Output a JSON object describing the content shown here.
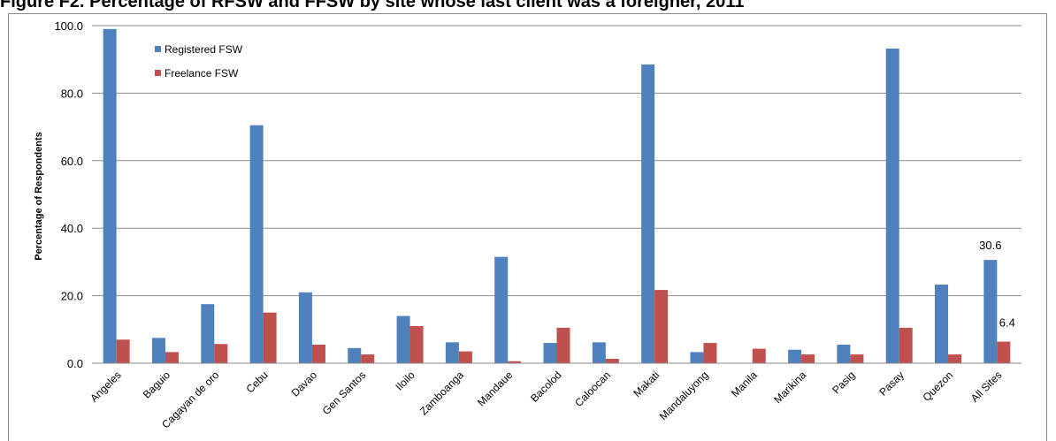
{
  "chart_data": {
    "type": "bar",
    "title": "Figure F2. Percentage of RFSW and FFSW by site whose last client was a foreigner, 2011",
    "ylabel": "Percentage of Respondents",
    "xlabel": "",
    "ylim": [
      0,
      100
    ],
    "yticks": [
      "0.0",
      "20.0",
      "40.0",
      "60.0",
      "80.0",
      "100.0"
    ],
    "grid": true,
    "legend_position": "top-left",
    "categories": [
      "Angeles",
      "Baguio",
      "Cagayan de oro",
      "Cebu",
      "Davao",
      "Gen Santos",
      "Iloilo",
      "Zamboanga",
      "Mandaue",
      "Bacolod",
      "Caloocan",
      "Makati",
      "Mandaluyong",
      "Manila",
      "Marikina",
      "Pasig",
      "Pasay",
      "Quezon",
      "All Sites"
    ],
    "series": [
      {
        "name": "Registered FSW",
        "color": "#4f81bd",
        "values": [
          99.0,
          7.5,
          17.5,
          70.5,
          21.0,
          4.5,
          14.0,
          6.2,
          31.5,
          6.0,
          6.2,
          88.5,
          3.3,
          0.0,
          4.0,
          5.5,
          93.2,
          23.3,
          30.6
        ]
      },
      {
        "name": "Freelance FSW",
        "color": "#c0504d",
        "values": [
          7.0,
          3.3,
          5.7,
          15.0,
          5.5,
          2.6,
          11.0,
          3.5,
          0.6,
          10.5,
          1.3,
          21.7,
          6.0,
          4.3,
          2.6,
          2.6,
          10.5,
          2.6,
          6.4
        ]
      }
    ],
    "data_labels": [
      {
        "series": 0,
        "index": 18,
        "text": "30.6"
      },
      {
        "series": 1,
        "index": 18,
        "text": "6.4"
      }
    ]
  }
}
